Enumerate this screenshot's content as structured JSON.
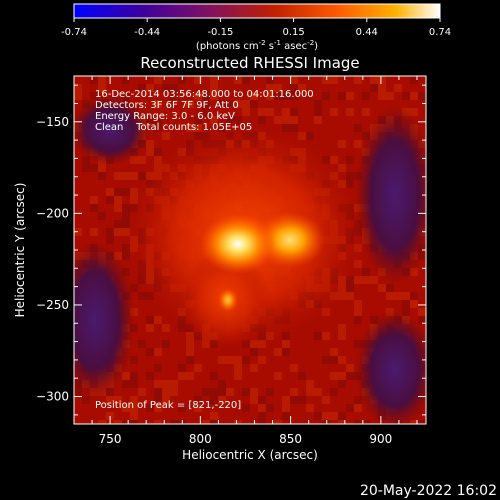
{
  "colorbar": {
    "ticks": [
      "-0.74",
      "-0.44",
      "-0.15",
      "0.15",
      "0.44",
      "0.74"
    ],
    "unit_label": "(photons cm",
    "unit_exp1": "-2",
    "unit_mid": " s",
    "unit_exp2": "-1",
    "unit_mid2": " asec",
    "unit_exp3": "-2",
    "unit_end": ")",
    "colors": [
      "#0000ff",
      "#3a00a0",
      "#7a0f6a",
      "#c22000",
      "#ff5a00",
      "#ffb200",
      "#ffffff"
    ]
  },
  "image": {
    "title": "Reconstructed RHESSI Image",
    "info": [
      "16-Dec-2014 03:56:48.000 to 04:01:16.000",
      "Detectors: 3F 6F 7F 9F, Att 0",
      "Energy Range: 3.0 - 6.0 keV",
      "Clean    Total counts: 1.05E+05"
    ],
    "peak_label": "Position of Peak = [821,-220]",
    "footer_date": "20-May-2022 16:02"
  },
  "chart_data": {
    "type": "heatmap",
    "title": "Reconstructed RHESSI Image",
    "xlabel": "Heliocentric X (arcsec)",
    "ylabel": "Heliocentric Y (arcsec)",
    "xlim": [
      730,
      925
    ],
    "ylim": [
      -315,
      -125
    ],
    "xticks": [
      750,
      800,
      850,
      900
    ],
    "yticks": [
      -150,
      -200,
      -250,
      -300
    ],
    "colorbar_range": [
      -0.74,
      0.74
    ],
    "peak": [
      821,
      -220
    ],
    "sources": [
      {
        "x": 821,
        "y": -221,
        "intensity": 0.74
      },
      {
        "x": 848,
        "y": -219,
        "intensity": 0.52
      }
    ]
  }
}
